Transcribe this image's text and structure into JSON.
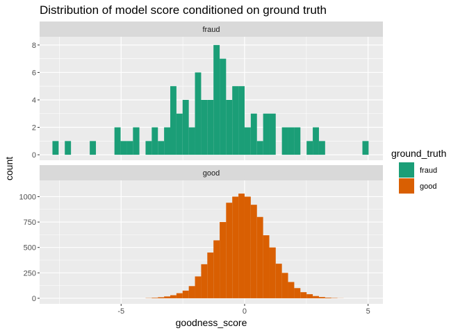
{
  "chart_data": {
    "type": "bar",
    "subtype": "faceted-histogram",
    "title": "Distribution of model score conditioned on ground truth",
    "xlabel": "goodness_score",
    "ylabel": "count",
    "xlim": [
      -8.3,
      5.6
    ],
    "x_ticks": [
      -5,
      0,
      5
    ],
    "x_tick_labels": [
      "-5",
      "0",
      "5"
    ],
    "grid": true,
    "legend": {
      "title": "ground_truth",
      "position": "right",
      "entries": [
        {
          "label": "fraud",
          "color": "#1b9e77"
        },
        {
          "label": "good",
          "color": "#d95f02"
        }
      ]
    },
    "panels": [
      {
        "strip": "fraud",
        "series_name": "fraud",
        "color": "#1b9e77",
        "ylim": [
          -0.4,
          8.6
        ],
        "y_ticks": [
          0,
          2,
          4,
          6,
          8
        ],
        "y_tick_labels": [
          "0",
          "2",
          "4",
          "6",
          "8"
        ],
        "bins": [
          {
            "x0": -7.78,
            "x1": -7.53,
            "count": 1
          },
          {
            "x0": -7.28,
            "x1": -7.03,
            "count": 1
          },
          {
            "x0": -6.27,
            "x1": -6.02,
            "count": 1
          },
          {
            "x0": -5.27,
            "x1": -5.02,
            "count": 2
          },
          {
            "x0": -5.02,
            "x1": -4.77,
            "count": 1
          },
          {
            "x0": -4.77,
            "x1": -4.52,
            "count": 1
          },
          {
            "x0": -4.52,
            "x1": -4.26,
            "count": 2
          },
          {
            "x0": -4.01,
            "x1": -3.76,
            "count": 1
          },
          {
            "x0": -3.76,
            "x1": -3.51,
            "count": 2
          },
          {
            "x0": -3.51,
            "x1": -3.26,
            "count": 1
          },
          {
            "x0": -3.26,
            "x1": -3.01,
            "count": 2
          },
          {
            "x0": -3.01,
            "x1": -2.76,
            "count": 5
          },
          {
            "x0": -2.76,
            "x1": -2.51,
            "count": 3
          },
          {
            "x0": -2.51,
            "x1": -2.26,
            "count": 4
          },
          {
            "x0": -2.26,
            "x1": -2.01,
            "count": 2
          },
          {
            "x0": -2.01,
            "x1": -1.76,
            "count": 6
          },
          {
            "x0": -1.76,
            "x1": -1.51,
            "count": 4
          },
          {
            "x0": -1.51,
            "x1": -1.26,
            "count": 4
          },
          {
            "x0": -1.26,
            "x1": -1.01,
            "count": 8
          },
          {
            "x0": -1.01,
            "x1": -0.75,
            "count": 7
          },
          {
            "x0": -0.75,
            "x1": -0.5,
            "count": 4
          },
          {
            "x0": -0.5,
            "x1": -0.25,
            "count": 5
          },
          {
            "x0": -0.25,
            "x1": 0.0,
            "count": 5
          },
          {
            "x0": 0.0,
            "x1": 0.25,
            "count": 2
          },
          {
            "x0": 0.25,
            "x1": 0.5,
            "count": 3
          },
          {
            "x0": 0.5,
            "x1": 0.75,
            "count": 1
          },
          {
            "x0": 0.75,
            "x1": 1.0,
            "count": 3
          },
          {
            "x0": 1.0,
            "x1": 1.26,
            "count": 3
          },
          {
            "x0": 1.51,
            "x1": 1.76,
            "count": 2
          },
          {
            "x0": 1.76,
            "x1": 2.01,
            "count": 2
          },
          {
            "x0": 2.01,
            "x1": 2.26,
            "count": 2
          },
          {
            "x0": 2.51,
            "x1": 2.76,
            "count": 1
          },
          {
            "x0": 2.76,
            "x1": 3.01,
            "count": 2
          },
          {
            "x0": 3.01,
            "x1": 3.26,
            "count": 1
          },
          {
            "x0": 4.77,
            "x1": 5.02,
            "count": 1
          }
        ]
      },
      {
        "strip": "good",
        "series_name": "good",
        "color": "#d95f02",
        "ylim": [
          -55,
          1160
        ],
        "y_ticks": [
          0,
          250,
          500,
          750,
          1000
        ],
        "y_tick_labels": [
          "0",
          "250",
          "500",
          "750",
          "1000"
        ],
        "bins": [
          {
            "x0": -4.01,
            "x1": -3.76,
            "count": 2
          },
          {
            "x0": -3.76,
            "x1": -3.51,
            "count": 5
          },
          {
            "x0": -3.51,
            "x1": -3.26,
            "count": 10
          },
          {
            "x0": -3.26,
            "x1": -3.01,
            "count": 18
          },
          {
            "x0": -3.01,
            "x1": -2.76,
            "count": 30
          },
          {
            "x0": -2.76,
            "x1": -2.51,
            "count": 50
          },
          {
            "x0": -2.51,
            "x1": -2.26,
            "count": 75
          },
          {
            "x0": -2.26,
            "x1": -2.01,
            "count": 120
          },
          {
            "x0": -2.01,
            "x1": -1.76,
            "count": 215
          },
          {
            "x0": -1.76,
            "x1": -1.51,
            "count": 335
          },
          {
            "x0": -1.51,
            "x1": -1.26,
            "count": 450
          },
          {
            "x0": -1.26,
            "x1": -1.01,
            "count": 570
          },
          {
            "x0": -1.01,
            "x1": -0.75,
            "count": 750
          },
          {
            "x0": -0.75,
            "x1": -0.5,
            "count": 940
          },
          {
            "x0": -0.5,
            "x1": -0.25,
            "count": 1000
          },
          {
            "x0": -0.25,
            "x1": 0.0,
            "count": 1030
          },
          {
            "x0": 0.0,
            "x1": 0.25,
            "count": 1000
          },
          {
            "x0": 0.25,
            "x1": 0.5,
            "count": 920
          },
          {
            "x0": 0.5,
            "x1": 0.75,
            "count": 800
          },
          {
            "x0": 0.75,
            "x1": 1.0,
            "count": 620
          },
          {
            "x0": 1.0,
            "x1": 1.26,
            "count": 500
          },
          {
            "x0": 1.26,
            "x1": 1.51,
            "count": 340
          },
          {
            "x0": 1.51,
            "x1": 1.76,
            "count": 250
          },
          {
            "x0": 1.76,
            "x1": 2.01,
            "count": 160
          },
          {
            "x0": 2.01,
            "x1": 2.26,
            "count": 100
          },
          {
            "x0": 2.26,
            "x1": 2.51,
            "count": 60
          },
          {
            "x0": 2.51,
            "x1": 2.76,
            "count": 40
          },
          {
            "x0": 2.76,
            "x1": 3.01,
            "count": 22
          },
          {
            "x0": 3.01,
            "x1": 3.26,
            "count": 12
          },
          {
            "x0": 3.26,
            "x1": 3.51,
            "count": 6
          },
          {
            "x0": 3.51,
            "x1": 3.76,
            "count": 3
          },
          {
            "x0": 3.76,
            "x1": 4.01,
            "count": 1
          }
        ]
      }
    ]
  }
}
